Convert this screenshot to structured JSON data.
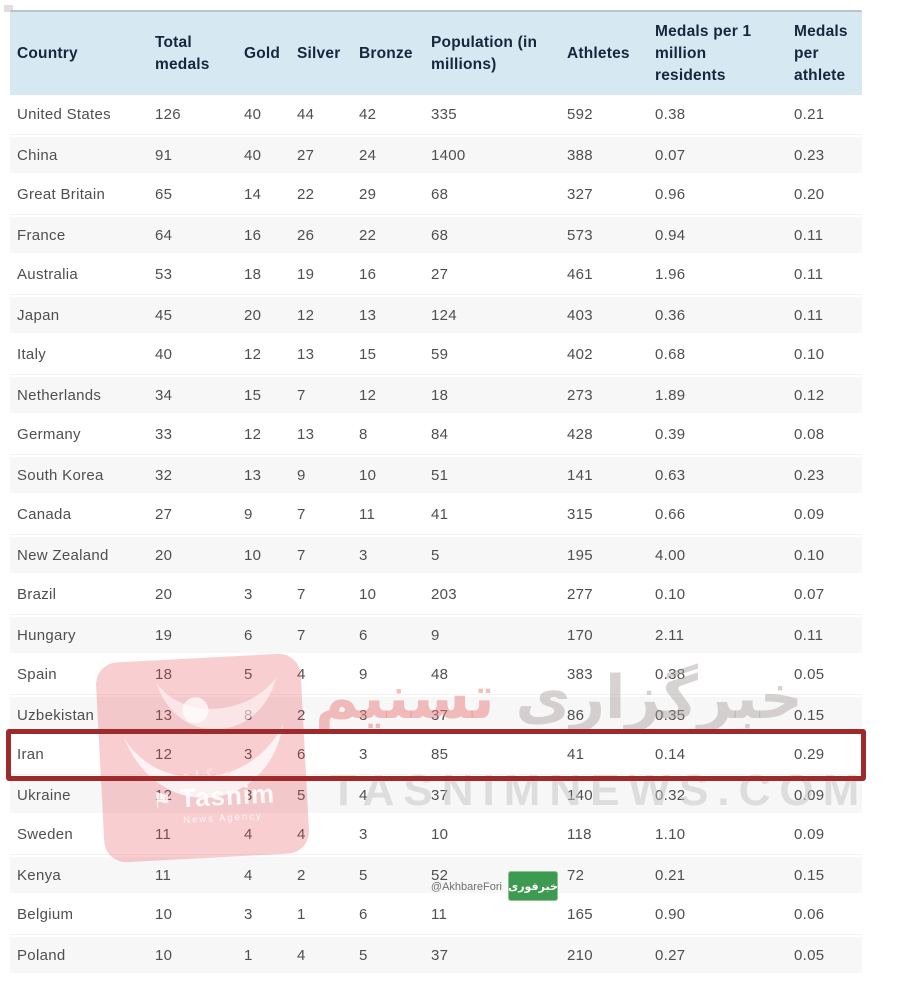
{
  "colors": {
    "header_bg": "#d6e9f2",
    "header_text": "#17263c",
    "row_text": "#4f4f4f",
    "row_alt_bg": "#f7f7f7",
    "highlight_border": "#9e2a2b",
    "stamp_red": "#e9505a",
    "watermark_pink": "#eb7d7d",
    "watermark_gray": "#a89e9e",
    "domain_gray": "#c4c4c4",
    "badge_green": "#3d9a50"
  },
  "table": {
    "columns": [
      {
        "key": "country",
        "label": "Country"
      },
      {
        "key": "total",
        "label": "Total\nmedals"
      },
      {
        "key": "gold",
        "label": "Gold"
      },
      {
        "key": "silver",
        "label": "Silver"
      },
      {
        "key": "bronze",
        "label": "Bronze"
      },
      {
        "key": "population",
        "label": "Population (in\nmillions)"
      },
      {
        "key": "athletes",
        "label": "Athletes"
      },
      {
        "key": "per_million",
        "label": "Medals per 1\nmillion\nresidents"
      },
      {
        "key": "per_athlete",
        "label": "Medals\nper\nathlete"
      }
    ],
    "rows": [
      {
        "country": "United States",
        "total": "126",
        "gold": "40",
        "silver": "44",
        "bronze": "42",
        "population": "335",
        "athletes": "592",
        "per_million": "0.38",
        "per_athlete": "0.21",
        "highlighted": false
      },
      {
        "country": "China",
        "total": "91",
        "gold": "40",
        "silver": "27",
        "bronze": "24",
        "population": "1400",
        "athletes": "388",
        "per_million": "0.07",
        "per_athlete": "0.23",
        "highlighted": false
      },
      {
        "country": "Great Britain",
        "total": "65",
        "gold": "14",
        "silver": "22",
        "bronze": "29",
        "population": "68",
        "athletes": "327",
        "per_million": "0.96",
        "per_athlete": "0.20",
        "highlighted": false
      },
      {
        "country": "France",
        "total": "64",
        "gold": "16",
        "silver": "26",
        "bronze": "22",
        "population": "68",
        "athletes": "573",
        "per_million": "0.94",
        "per_athlete": "0.11",
        "highlighted": false
      },
      {
        "country": "Australia",
        "total": "53",
        "gold": "18",
        "silver": "19",
        "bronze": "16",
        "population": "27",
        "athletes": "461",
        "per_million": "1.96",
        "per_athlete": "0.11",
        "highlighted": false
      },
      {
        "country": "Japan",
        "total": "45",
        "gold": "20",
        "silver": "12",
        "bronze": "13",
        "population": "124",
        "athletes": "403",
        "per_million": "0.36",
        "per_athlete": "0.11",
        "highlighted": false
      },
      {
        "country": "Italy",
        "total": "40",
        "gold": "12",
        "silver": "13",
        "bronze": "15",
        "population": "59",
        "athletes": "402",
        "per_million": "0.68",
        "per_athlete": "0.10",
        "highlighted": false
      },
      {
        "country": "Netherlands",
        "total": "34",
        "gold": "15",
        "silver": "7",
        "bronze": "12",
        "population": "18",
        "athletes": "273",
        "per_million": "1.89",
        "per_athlete": "0.12",
        "highlighted": false
      },
      {
        "country": "Germany",
        "total": "33",
        "gold": "12",
        "silver": "13",
        "bronze": "8",
        "population": "84",
        "athletes": "428",
        "per_million": "0.39",
        "per_athlete": "0.08",
        "highlighted": false
      },
      {
        "country": "South Korea",
        "total": "32",
        "gold": "13",
        "silver": "9",
        "bronze": "10",
        "population": "51",
        "athletes": "141",
        "per_million": "0.63",
        "per_athlete": "0.23",
        "highlighted": false
      },
      {
        "country": "Canada",
        "total": "27",
        "gold": "9",
        "silver": "7",
        "bronze": "11",
        "population": "41",
        "athletes": "315",
        "per_million": "0.66",
        "per_athlete": "0.09",
        "highlighted": false
      },
      {
        "country": "New Zealand",
        "total": "20",
        "gold": "10",
        "silver": "7",
        "bronze": "3",
        "population": "5",
        "athletes": "195",
        "per_million": "4.00",
        "per_athlete": "0.10",
        "highlighted": false
      },
      {
        "country": "Brazil",
        "total": "20",
        "gold": "3",
        "silver": "7",
        "bronze": "10",
        "population": "203",
        "athletes": "277",
        "per_million": "0.10",
        "per_athlete": "0.07",
        "highlighted": false
      },
      {
        "country": "Hungary",
        "total": "19",
        "gold": "6",
        "silver": "7",
        "bronze": "6",
        "population": "9",
        "athletes": "170",
        "per_million": "2.11",
        "per_athlete": "0.11",
        "highlighted": false
      },
      {
        "country": "Spain",
        "total": "18",
        "gold": "5",
        "silver": "4",
        "bronze": "9",
        "population": "48",
        "athletes": "383",
        "per_million": "0.38",
        "per_athlete": "0.05",
        "highlighted": false
      },
      {
        "country": "Uzbekistan",
        "total": "13",
        "gold": "8",
        "silver": "2",
        "bronze": "3",
        "population": "37",
        "athletes": "86",
        "per_million": "0.35",
        "per_athlete": "0.15",
        "highlighted": false
      },
      {
        "country": "Iran",
        "total": "12",
        "gold": "3",
        "silver": "6",
        "bronze": "3",
        "population": "85",
        "athletes": "41",
        "per_million": "0.14",
        "per_athlete": "0.29",
        "highlighted": true
      },
      {
        "country": "Ukraine",
        "total": "12",
        "gold": "3",
        "silver": "5",
        "bronze": "4",
        "population": "37",
        "athletes": "140",
        "per_million": "0.32",
        "per_athlete": "0.09",
        "highlighted": false
      },
      {
        "country": "Sweden",
        "total": "11",
        "gold": "4",
        "silver": "4",
        "bronze": "3",
        "population": "10",
        "athletes": "118",
        "per_million": "1.10",
        "per_athlete": "0.09",
        "highlighted": false
      },
      {
        "country": "Kenya",
        "total": "11",
        "gold": "4",
        "silver": "2",
        "bronze": "5",
        "population": "52",
        "athletes": "72",
        "per_million": "0.21",
        "per_athlete": "0.15",
        "highlighted": false
      },
      {
        "country": "Belgium",
        "total": "10",
        "gold": "3",
        "silver": "1",
        "bronze": "6",
        "population": "11",
        "athletes": "165",
        "per_million": "0.90",
        "per_athlete": "0.06",
        "highlighted": false
      },
      {
        "country": "Poland",
        "total": "10",
        "gold": "1",
        "silver": "4",
        "bronze": "5",
        "population": "37",
        "athletes": "210",
        "per_million": "0.27",
        "per_athlete": "0.05",
        "highlighted": false
      }
    ]
  },
  "watermarks": {
    "stamp": {
      "brand": "Tasnim",
      "subtitle": "News Agency",
      "small_fa": "خبرگزاری",
      "flag_glyph": "⚑"
    },
    "title_fa": {
      "word_right": "خبرگزاری",
      "word_left": "تسنیم"
    },
    "domain": "TASNIMNEWS.COM",
    "akhbar": {
      "handle": "@AkhbareFori",
      "logo_text_fa": "خبرفوری"
    }
  }
}
